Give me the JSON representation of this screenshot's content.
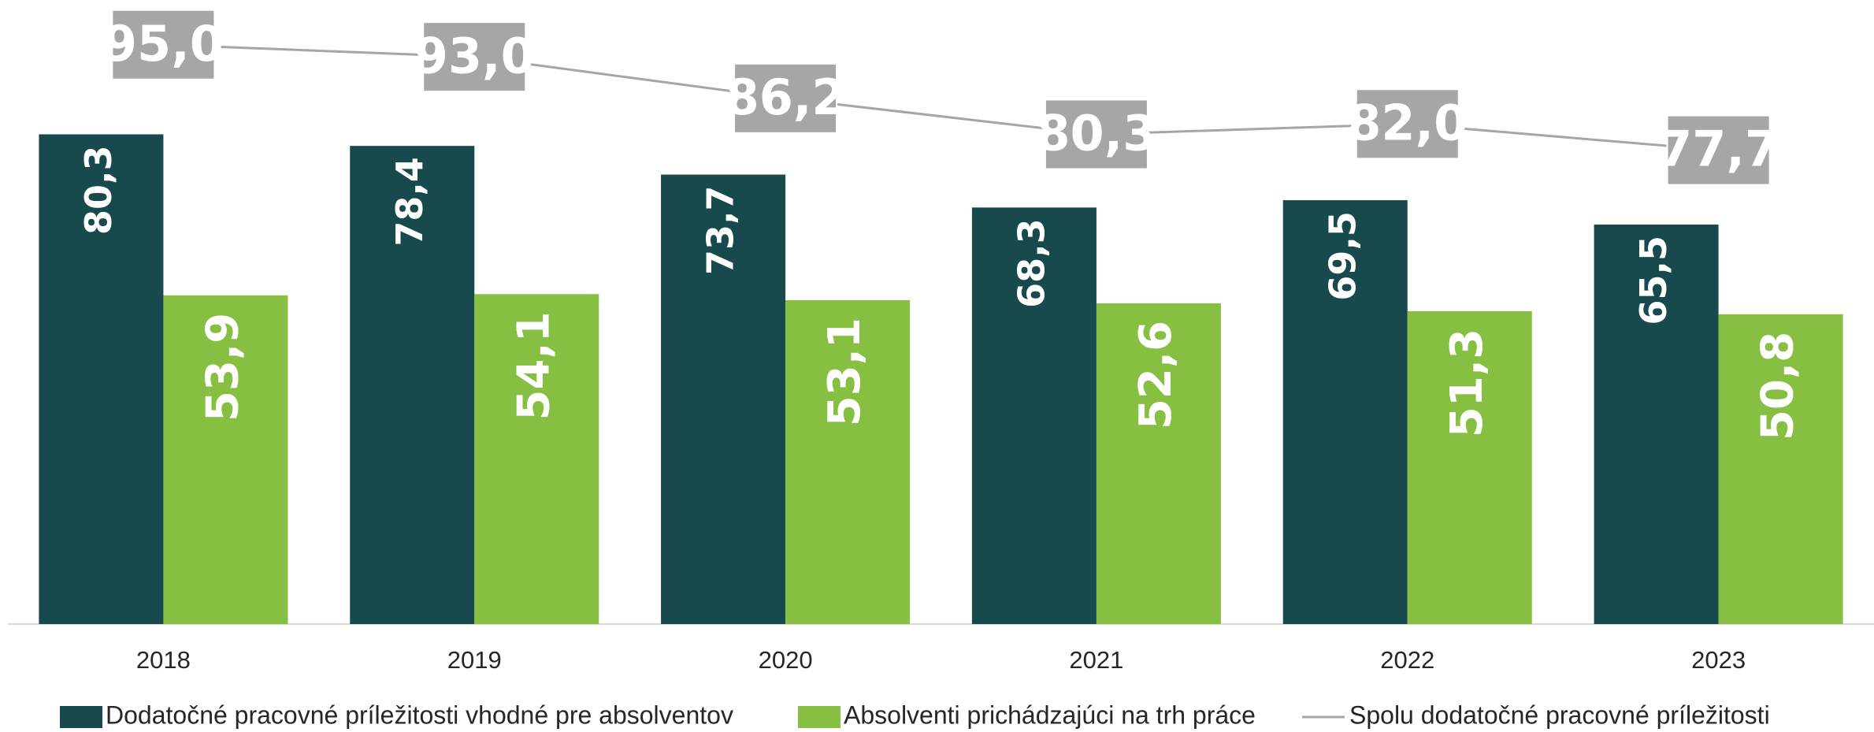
{
  "chart_data": {
    "type": "bar",
    "categories": [
      "2018",
      "2019",
      "2020",
      "2021",
      "2022",
      "2023"
    ],
    "ylim": [
      0,
      100
    ],
    "series": [
      {
        "name": "Dodatočné pracovné príležitosti vhodné pre absolventov",
        "type": "bar",
        "color": "#17494d",
        "values": [
          80.3,
          78.4,
          73.7,
          68.3,
          69.5,
          65.5
        ],
        "value_labels": [
          "80,3",
          "78,4",
          "73,7",
          "68,3",
          "69,5",
          "65,5"
        ]
      },
      {
        "name": "Absolventi prichádzajúci na trh práce",
        "type": "bar",
        "color": "#86bf41",
        "values": [
          53.9,
          54.1,
          53.1,
          52.6,
          51.3,
          50.8
        ],
        "value_labels": [
          "53,9",
          "54,1",
          "53,1",
          "52,6",
          "51,3",
          "50,8"
        ]
      },
      {
        "name": "Spolu dodatočné pracovné príležitosti",
        "type": "line",
        "color": "#a6a6a6",
        "values": [
          95.0,
          93.0,
          86.2,
          80.3,
          82.0,
          77.7
        ],
        "value_labels": [
          "95,0",
          "93,0",
          "86,2",
          "80,3",
          "82,0",
          "77,7"
        ]
      }
    ],
    "legend": "bottom"
  }
}
